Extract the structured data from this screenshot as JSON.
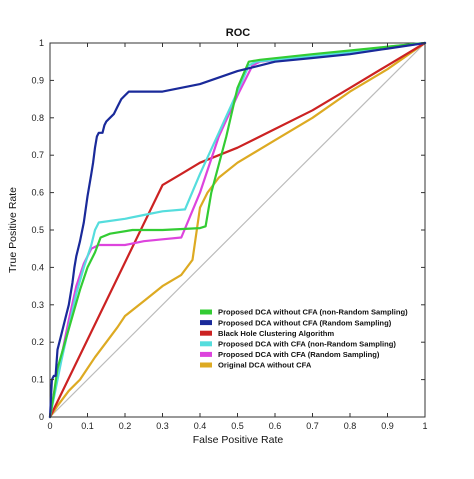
{
  "chart_data": {
    "type": "line",
    "title": "ROC",
    "xlabel": "False Positive Rate",
    "ylabel": "True Positive Rate",
    "xlim": [
      0,
      1
    ],
    "ylim": [
      0,
      1
    ],
    "xticks": [
      "0",
      "0.1",
      "0.2",
      "0.3",
      "0.4",
      "0.5",
      "0.6",
      "0.7",
      "0.8",
      "0.9",
      "1"
    ],
    "yticks": [
      "0",
      "0.1",
      "0.2",
      "0.3",
      "0.4",
      "0.5",
      "0.6",
      "0.7",
      "0.8",
      "0.9",
      "1"
    ],
    "grid": false,
    "legend_position": "lower-right",
    "diagonal_color": "#bbbbbb",
    "series": [
      {
        "name": "Proposed DCA without CFA (non-Random Sampling)",
        "color": "#33cc33",
        "x": [
          0,
          0.01,
          0.02,
          0.04,
          0.06,
          0.08,
          0.1,
          0.12,
          0.135,
          0.16,
          0.22,
          0.3,
          0.4,
          0.415,
          0.43,
          0.47,
          0.5,
          0.53,
          0.56,
          0.7,
          0.85,
          1.0
        ],
        "y": [
          0,
          0.06,
          0.13,
          0.2,
          0.27,
          0.34,
          0.4,
          0.44,
          0.48,
          0.49,
          0.5,
          0.5,
          0.505,
          0.51,
          0.6,
          0.75,
          0.88,
          0.95,
          0.955,
          0.97,
          0.985,
          1.0
        ]
      },
      {
        "name": "Proposed DCA without CFA (Random Sampling)",
        "color": "#1a2a9a",
        "x": [
          0,
          0.005,
          0.01,
          0.015,
          0.02,
          0.03,
          0.04,
          0.05,
          0.06,
          0.065,
          0.07,
          0.08,
          0.09,
          0.1,
          0.11,
          0.115,
          0.12,
          0.125,
          0.13,
          0.14,
          0.145,
          0.15,
          0.16,
          0.17,
          0.18,
          0.19,
          0.2,
          0.21,
          0.3,
          0.4,
          0.5,
          0.6,
          0.7,
          0.8,
          0.9,
          1.0
        ],
        "y": [
          0,
          0.1,
          0.11,
          0.11,
          0.18,
          0.22,
          0.26,
          0.3,
          0.36,
          0.4,
          0.43,
          0.47,
          0.52,
          0.59,
          0.65,
          0.68,
          0.72,
          0.75,
          0.76,
          0.76,
          0.78,
          0.79,
          0.8,
          0.81,
          0.83,
          0.85,
          0.86,
          0.87,
          0.87,
          0.89,
          0.925,
          0.95,
          0.96,
          0.97,
          0.985,
          1.0
        ]
      },
      {
        "name": "Black Hole Clustering Algorithm",
        "color": "#cc2222",
        "x": [
          0,
          0.3,
          0.35,
          0.4,
          0.5,
          0.6,
          0.7,
          0.8,
          0.9,
          1.0
        ],
        "y": [
          0,
          0.62,
          0.65,
          0.68,
          0.72,
          0.77,
          0.82,
          0.88,
          0.94,
          1.0
        ]
      },
      {
        "name": "Proposed DCA with CFA (non-Random Sampling)",
        "color": "#55dddd",
        "x": [
          0,
          0.01,
          0.03,
          0.05,
          0.07,
          0.09,
          0.11,
          0.12,
          0.13,
          0.2,
          0.25,
          0.3,
          0.36,
          0.4,
          0.45,
          0.5,
          0.53,
          0.55,
          0.6,
          0.7,
          0.8,
          0.9,
          1.0
        ],
        "y": [
          0,
          0.05,
          0.15,
          0.24,
          0.33,
          0.4,
          0.46,
          0.5,
          0.52,
          0.53,
          0.54,
          0.55,
          0.555,
          0.65,
          0.76,
          0.87,
          0.94,
          0.95,
          0.955,
          0.965,
          0.975,
          0.99,
          1.0
        ]
      },
      {
        "name": "Proposed DCA with CFA (Random Sampling)",
        "color": "#dd44dd",
        "x": [
          0,
          0.01,
          0.03,
          0.05,
          0.07,
          0.09,
          0.11,
          0.13,
          0.15,
          0.2,
          0.25,
          0.3,
          0.35,
          0.4,
          0.45,
          0.5,
          0.54,
          0.56,
          0.7,
          0.85,
          1.0
        ],
        "y": [
          0,
          0.06,
          0.16,
          0.26,
          0.35,
          0.41,
          0.45,
          0.46,
          0.46,
          0.46,
          0.47,
          0.475,
          0.48,
          0.6,
          0.75,
          0.86,
          0.94,
          0.95,
          0.965,
          0.98,
          1.0
        ]
      },
      {
        "name": "Original DCA without CFA",
        "color": "#ddaa22",
        "x": [
          0,
          0.02,
          0.05,
          0.08,
          0.1,
          0.12,
          0.15,
          0.18,
          0.2,
          0.25,
          0.3,
          0.35,
          0.38,
          0.4,
          0.42,
          0.45,
          0.5,
          0.6,
          0.7,
          0.8,
          0.9,
          1.0
        ],
        "y": [
          0,
          0.03,
          0.07,
          0.1,
          0.13,
          0.16,
          0.2,
          0.24,
          0.27,
          0.31,
          0.35,
          0.38,
          0.42,
          0.56,
          0.6,
          0.64,
          0.68,
          0.74,
          0.8,
          0.87,
          0.93,
          1.0
        ]
      }
    ]
  }
}
